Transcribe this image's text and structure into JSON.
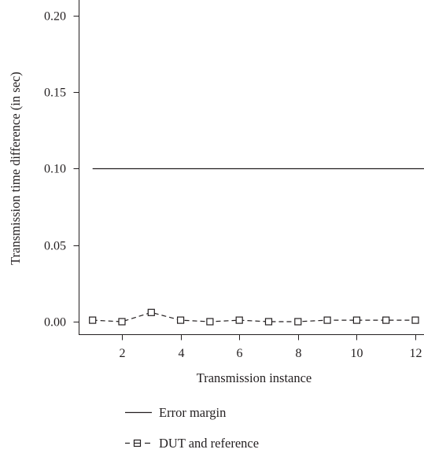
{
  "chart_data": {
    "type": "line",
    "xlabel": "Transmission instance",
    "ylabel": "Transmission time difference (in sec)",
    "xlim": [
      0.7,
      12.3
    ],
    "ylim": [
      -0.0075,
      0.208
    ],
    "x_ticks": [
      2,
      4,
      6,
      8,
      10,
      12
    ],
    "x_tick_labels": [
      "2",
      "4",
      "6",
      "8",
      "10",
      "12"
    ],
    "y_ticks": [
      0.0,
      0.05,
      0.1,
      0.15,
      0.2
    ],
    "y_tick_labels": [
      "0.00",
      "0.05",
      "0.10",
      "0.15",
      "0.20"
    ],
    "grid": false,
    "legend_position": "bottom",
    "series": [
      {
        "name": "Error margin",
        "style": "solid",
        "color": "#231f20",
        "x": [
          1,
          12.3
        ],
        "values": [
          0.1,
          0.1
        ]
      },
      {
        "name": "DUT and reference",
        "style": "dashed",
        "marker": "square",
        "color": "#231f20",
        "x": [
          1,
          2,
          3,
          4,
          5,
          6,
          7,
          8,
          9,
          10,
          11,
          12
        ],
        "values": [
          0.001,
          0.0,
          0.006,
          0.001,
          0.0,
          0.001,
          0.0,
          0.0,
          0.001,
          0.001,
          0.001,
          0.001
        ]
      }
    ]
  }
}
